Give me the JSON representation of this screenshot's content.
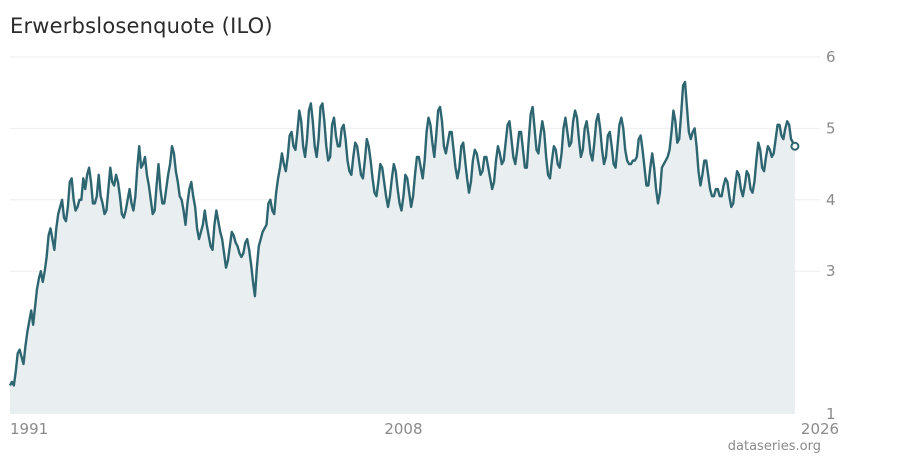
{
  "title": "Erwerbslosenquote (ILO)",
  "source": "dataseries.org",
  "colors": {
    "line": "#2d6570",
    "area": "#e9eef1",
    "grid": "#eeeeee"
  },
  "chart_data": {
    "type": "area",
    "title": "Erwerbslosenquote (ILO)",
    "xlabel": "",
    "ylabel": "",
    "xlim": [
      1991.0,
      2026.0
    ],
    "ylim": [
      1,
      6
    ],
    "y_ticks": [
      1,
      3,
      4,
      5,
      6
    ],
    "y_tick_labels": [
      "1",
      "3",
      "4",
      "5",
      "6"
    ],
    "x_ticks": [
      1991,
      2008,
      2026
    ],
    "x_tick_labels": [
      "1991",
      "2008",
      "2026"
    ],
    "grid": true,
    "y_axis_position": "right",
    "series": [
      {
        "frequency": "monthly",
        "start": "1991-01",
        "values": [
          1.4,
          1.45,
          1.4,
          1.6,
          1.85,
          1.9,
          1.8,
          1.7,
          1.95,
          2.15,
          2.3,
          2.45,
          2.25,
          2.5,
          2.75,
          2.9,
          3.0,
          2.85,
          3.0,
          3.2,
          3.5,
          3.6,
          3.45,
          3.3,
          3.6,
          3.8,
          3.9,
          4.0,
          3.75,
          3.7,
          3.9,
          4.25,
          4.3,
          4.0,
          3.85,
          3.9,
          4.0,
          4.0,
          4.3,
          4.15,
          4.35,
          4.45,
          4.25,
          3.95,
          3.95,
          4.05,
          4.35,
          4.05,
          3.95,
          3.8,
          3.85,
          4.15,
          4.45,
          4.25,
          4.2,
          4.35,
          4.25,
          4.05,
          3.8,
          3.75,
          3.85,
          4.0,
          4.15,
          3.95,
          3.85,
          4.05,
          4.45,
          4.75,
          4.45,
          4.5,
          4.6,
          4.35,
          4.2,
          4.0,
          3.8,
          3.85,
          4.2,
          4.5,
          4.15,
          3.95,
          3.95,
          4.15,
          4.35,
          4.5,
          4.75,
          4.65,
          4.4,
          4.25,
          4.05,
          4.0,
          3.85,
          3.65,
          3.95,
          4.15,
          4.25,
          4.05,
          3.9,
          3.6,
          3.45,
          3.55,
          3.65,
          3.85,
          3.65,
          3.5,
          3.35,
          3.3,
          3.65,
          3.85,
          3.7,
          3.55,
          3.45,
          3.25,
          3.05,
          3.15,
          3.35,
          3.55,
          3.5,
          3.4,
          3.35,
          3.25,
          3.2,
          3.25,
          3.4,
          3.45,
          3.3,
          3.1,
          2.85,
          2.65,
          3.05,
          3.35,
          3.45,
          3.55,
          3.6,
          3.65,
          3.95,
          4.0,
          3.85,
          3.8,
          4.1,
          4.3,
          4.45,
          4.65,
          4.5,
          4.4,
          4.6,
          4.9,
          4.95,
          4.75,
          4.7,
          4.95,
          5.25,
          5.1,
          4.75,
          4.6,
          4.85,
          5.25,
          5.35,
          5.1,
          4.75,
          4.6,
          4.85,
          5.3,
          5.35,
          5.1,
          4.75,
          4.55,
          4.6,
          5.05,
          5.15,
          4.9,
          4.75,
          4.75,
          5.0,
          5.05,
          4.85,
          4.55,
          4.4,
          4.35,
          4.6,
          4.8,
          4.75,
          4.55,
          4.35,
          4.3,
          4.55,
          4.85,
          4.75,
          4.55,
          4.3,
          4.1,
          4.05,
          4.25,
          4.5,
          4.45,
          4.25,
          4.05,
          3.9,
          4.05,
          4.3,
          4.5,
          4.4,
          4.15,
          3.95,
          3.85,
          4.05,
          4.35,
          4.3,
          4.1,
          3.9,
          4.05,
          4.35,
          4.6,
          4.6,
          4.45,
          4.3,
          4.55,
          4.95,
          5.15,
          5.05,
          4.8,
          4.6,
          4.9,
          5.25,
          5.3,
          5.1,
          4.75,
          4.65,
          4.8,
          4.95,
          4.95,
          4.7,
          4.45,
          4.3,
          4.45,
          4.75,
          4.8,
          4.55,
          4.3,
          4.1,
          4.25,
          4.55,
          4.7,
          4.65,
          4.5,
          4.35,
          4.4,
          4.6,
          4.6,
          4.45,
          4.3,
          4.15,
          4.25,
          4.55,
          4.75,
          4.65,
          4.5,
          4.55,
          4.8,
          5.05,
          5.1,
          4.85,
          4.6,
          4.5,
          4.7,
          4.95,
          4.95,
          4.7,
          4.45,
          4.45,
          4.85,
          5.2,
          5.3,
          5.0,
          4.7,
          4.65,
          4.9,
          5.1,
          4.95,
          4.6,
          4.35,
          4.3,
          4.55,
          4.75,
          4.7,
          4.5,
          4.45,
          4.65,
          5.0,
          5.15,
          4.95,
          4.75,
          4.8,
          5.1,
          5.25,
          5.15,
          4.85,
          4.6,
          4.7,
          5.0,
          5.1,
          4.9,
          4.65,
          4.55,
          4.8,
          5.1,
          5.2,
          5.0,
          4.7,
          4.5,
          4.6,
          4.9,
          4.95,
          4.75,
          4.5,
          4.45,
          4.75,
          5.05,
          5.15,
          5.0,
          4.7,
          4.55,
          4.5,
          4.5,
          4.55,
          4.55,
          4.6,
          4.85,
          4.9,
          4.7,
          4.45,
          4.2,
          4.2,
          4.45,
          4.65,
          4.45,
          4.15,
          3.95,
          4.1,
          4.45,
          4.5,
          4.55,
          4.6,
          4.7,
          4.95,
          5.25,
          5.1,
          4.8,
          4.85,
          5.2,
          5.6,
          5.65,
          5.3,
          4.95,
          4.85,
          4.95,
          5.0,
          4.75,
          4.4,
          4.2,
          4.35,
          4.55,
          4.55,
          4.35,
          4.15,
          4.05,
          4.05,
          4.15,
          4.15,
          4.05,
          4.05,
          4.2,
          4.3,
          4.25,
          4.05,
          3.9,
          3.95,
          4.2,
          4.4,
          4.35,
          4.15,
          4.05,
          4.2,
          4.4,
          4.35,
          4.15,
          4.1,
          4.25,
          4.55,
          4.8,
          4.7,
          4.45,
          4.4,
          4.6,
          4.75,
          4.7,
          4.6,
          4.65,
          4.85,
          5.05,
          5.05,
          4.9,
          4.85,
          5.0,
          5.1,
          5.05,
          4.85,
          4.8,
          4.75
        ]
      }
    ]
  }
}
